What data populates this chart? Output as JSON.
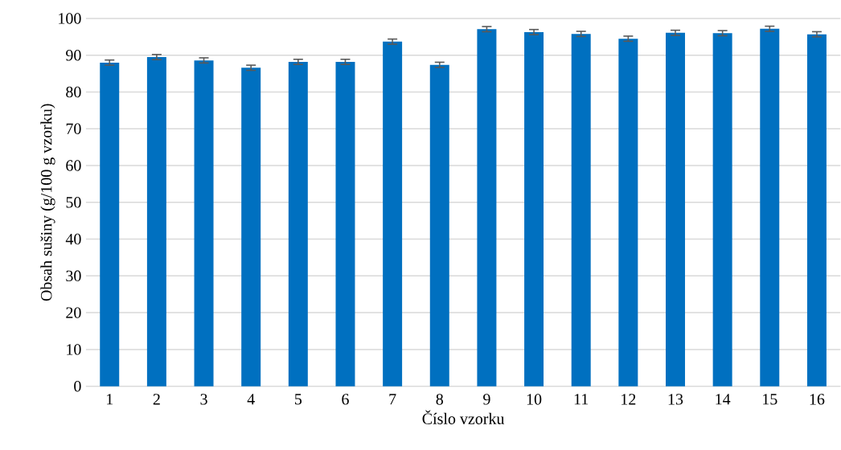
{
  "chart_data": {
    "type": "bar",
    "xlabel": "Číslo vzorku",
    "ylabel": "Obsah sušiny (g/100 g vzorku)",
    "categories": [
      "1",
      "2",
      "3",
      "4",
      "5",
      "6",
      "7",
      "8",
      "9",
      "10",
      "11",
      "12",
      "13",
      "14",
      "15",
      "16"
    ],
    "values": [
      88.0,
      89.5,
      88.6,
      86.6,
      88.2,
      88.2,
      93.7,
      87.4,
      97.1,
      96.3,
      95.8,
      94.5,
      96.1,
      96.0,
      97.2,
      95.7
    ],
    "errors": [
      0.7,
      0.7,
      0.7,
      0.7,
      0.7,
      0.7,
      0.7,
      0.7,
      0.7,
      0.7,
      0.7,
      0.7,
      0.7,
      0.7,
      0.7,
      0.7
    ],
    "color": "#0070c0",
    "ylim": [
      0,
      100
    ],
    "yticks": [
      0,
      10,
      20,
      30,
      40,
      50,
      60,
      70,
      80,
      90,
      100
    ],
    "grid": "y"
  }
}
